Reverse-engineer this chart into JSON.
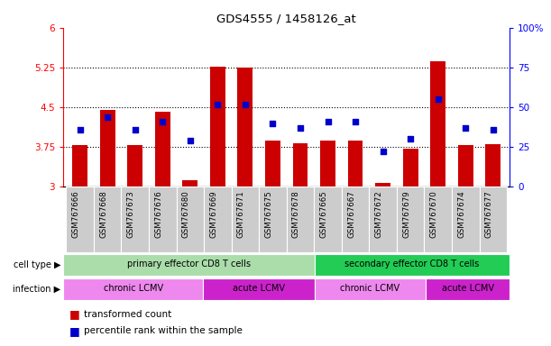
{
  "title": "GDS4555 / 1458126_at",
  "samples": [
    "GSM767666",
    "GSM767668",
    "GSM767673",
    "GSM767676",
    "GSM767680",
    "GSM767669",
    "GSM767671",
    "GSM767675",
    "GSM767678",
    "GSM767665",
    "GSM767667",
    "GSM767672",
    "GSM767679",
    "GSM767670",
    "GSM767674",
    "GSM767677"
  ],
  "red_values": [
    3.78,
    4.45,
    3.78,
    4.42,
    3.12,
    5.26,
    5.25,
    3.87,
    3.82,
    3.88,
    3.87,
    3.08,
    3.72,
    5.36,
    3.78,
    3.8
  ],
  "blue_values": [
    36,
    44,
    36,
    41,
    29,
    52,
    52,
    40,
    37,
    41,
    41,
    22,
    30,
    55,
    37,
    36
  ],
  "ylim_left": [
    3.0,
    6.0
  ],
  "ylim_right": [
    0,
    100
  ],
  "yticks_left": [
    3,
    3.75,
    4.5,
    5.25,
    6
  ],
  "yticks_right": [
    0,
    25,
    50,
    75,
    100
  ],
  "ytick_labels_left": [
    "3",
    "3.75",
    "4.5",
    "5.25",
    "6"
  ],
  "ytick_labels_right": [
    "0",
    "25",
    "50",
    "75",
    "100%"
  ],
  "hlines": [
    3.75,
    4.5,
    5.25
  ],
  "bar_color": "#cc0000",
  "dot_color": "#0000cc",
  "cell_type_groups": [
    {
      "label": "primary effector CD8 T cells",
      "start": 0,
      "end": 9,
      "color": "#aaddaa"
    },
    {
      "label": "secondary effector CD8 T cells",
      "start": 9,
      "end": 16,
      "color": "#22cc55"
    }
  ],
  "infection_groups": [
    {
      "label": "chronic LCMV",
      "start": 0,
      "end": 5,
      "color": "#ee88ee"
    },
    {
      "label": "acute LCMV",
      "start": 5,
      "end": 9,
      "color": "#cc22cc"
    },
    {
      "label": "chronic LCMV",
      "start": 9,
      "end": 13,
      "color": "#ee88ee"
    },
    {
      "label": "acute LCMV",
      "start": 13,
      "end": 16,
      "color": "#cc22cc"
    }
  ],
  "legend_red": "transformed count",
  "legend_blue": "percentile rank within the sample",
  "cell_type_label": "cell type",
  "infection_label": "infection",
  "bar_width": 0.55,
  "ybase": 3.0,
  "tick_bg_color": "#cccccc"
}
